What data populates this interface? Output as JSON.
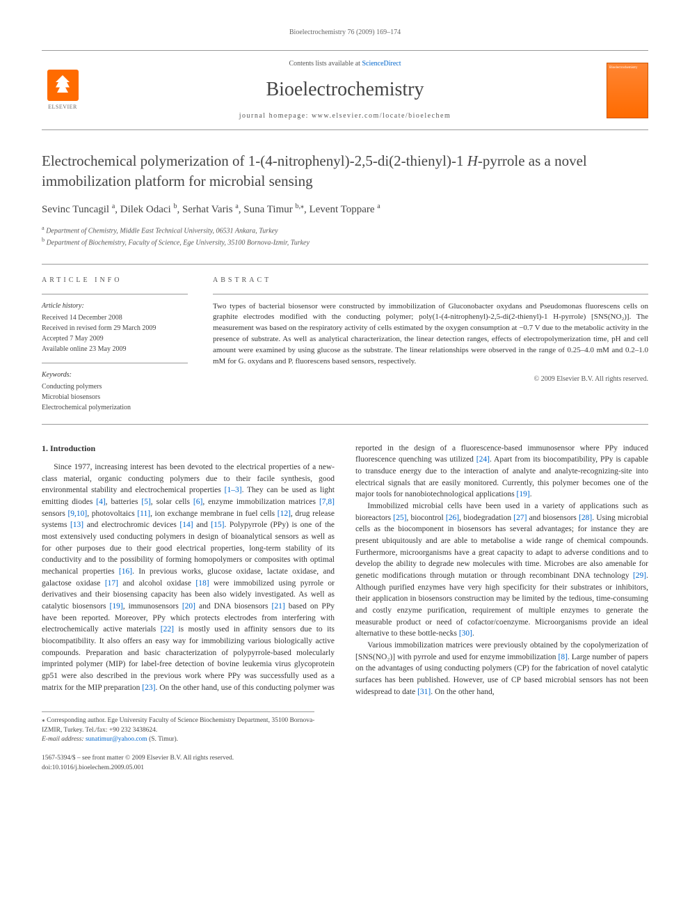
{
  "page_header": "Bioelectrochemistry 76 (2009) 169–174",
  "masthead": {
    "contents_prefix": "Contents lists available at ",
    "sciencedirect": "ScienceDirect",
    "journal_name": "Bioelectrochemistry",
    "homepage_prefix": "journal homepage: ",
    "homepage_url": "www.elsevier.com/locate/bioelechem",
    "elsevier_label": "ELSEVIER",
    "cover_label": "Bioelectrochemistry"
  },
  "title": {
    "line1": "Electrochemical polymerization of 1-(4-nitrophenyl)-2,5-di(2-thienyl)-1 ",
    "italic_part": "H",
    "line1_cont": "-pyrrole",
    "line2": "as a novel immobilization platform for microbial sensing"
  },
  "authors": [
    {
      "name": "Sevinc Tuncagil",
      "sup": "a"
    },
    {
      "name": "Dilek Odaci",
      "sup": "b"
    },
    {
      "name": "Serhat Varis",
      "sup": "a"
    },
    {
      "name": "Suna Timur",
      "sup": "b,",
      "star": "⁎"
    },
    {
      "name": "Levent Toppare",
      "sup": "a"
    }
  ],
  "affiliations": {
    "a": "Department of Chemistry, Middle East Technical University, 06531 Ankara, Turkey",
    "b": "Department of Biochemistry, Faculty of Science, Ege University, 35100 Bornova-Izmir, Turkey"
  },
  "article_info": {
    "heading": "ARTICLE INFO",
    "history_label": "Article history:",
    "history": [
      "Received 14 December 2008",
      "Received in revised form 29 March 2009",
      "Accepted 7 May 2009",
      "Available online 23 May 2009"
    ],
    "keywords_label": "Keywords:",
    "keywords": [
      "Conducting polymers",
      "Microbial biosensors",
      "Electrochemical polymerization"
    ]
  },
  "abstract": {
    "heading": "ABSTRACT",
    "text": "Two types of bacterial biosensor were constructed by immobilization of Gluconobacter oxydans and Pseudomonas fluorescens cells on graphite electrodes modified with the conducting polymer; poly(1-(4-nitrophenyl)-2,5-di(2-thienyl)-1 H-pyrrole) [SNS(NO₂)]. The measurement was based on the respiratory activity of cells estimated by the oxygen consumption at −0.7 V due to the metabolic activity in the presence of substrate. As well as analytical characterization, the linear detection ranges, effects of electropolymerization time, pH and cell amount were examined by using glucose as the substrate. The linear relationships were observed in the range of 0.25–4.0 mM and 0.2–1.0 mM for G. oxydans and P. fluorescens based sensors, respectively.",
    "copyright": "© 2009 Elsevier B.V. All rights reserved."
  },
  "section_heading": "1. Introduction",
  "body": {
    "p1a": "Since 1977, increasing interest has been devoted to the electrical properties of a new-class material, organic conducting polymers due to their facile synthesis, good environmental stability and electrochemical properties ",
    "c1": "[1–3]",
    "p1b": ". They can be used as light emitting diodes ",
    "c2": "[4]",
    "p1c": ", batteries ",
    "c3": "[5]",
    "p1d": ", solar cells ",
    "c4": "[6]",
    "p1e": ", enzyme immobilization matrices ",
    "c5": "[7,8]",
    "p1f": " sensors ",
    "c6": "[9,10]",
    "p1g": ", photovoltaics ",
    "c7": "[11]",
    "p1h": ", ion exchange membrane in fuel cells ",
    "c8": "[12]",
    "p1i": ", drug release systems ",
    "c9": "[13]",
    "p1j": " and electrochromic devices ",
    "c10": "[14]",
    "p1k": " and ",
    "c11": "[15]",
    "p1l": ". Polypyrrole (PPy) is one of the most extensively used conducting polymers in design of bioanalytical sensors as well as for other purposes due to their good electrical properties, long-term stability of its conductivity and to the possibility of forming homopolymers or composites with optimal mechanical properties ",
    "c12": "[16]",
    "p1m": ". In previous works, glucose oxidase, lactate oxidase, and galactose oxidase ",
    "c13": "[17]",
    "p1n": " and alcohol oxidase ",
    "c14": "[18]",
    "p1o": " were immobilized using pyrrole or derivatives and their biosensing capacity has been also widely investigated. As well as catalytic biosensors ",
    "c15": "[19]",
    "p1p": ", immunosensors ",
    "c16": "[20]",
    "p1q": " and DNA biosensors ",
    "c17": "[21]",
    "p1r": " based on PPy have been reported. Moreover, PPy which protects electrodes from interfering with electrochemically active materials ",
    "c18": "[22]",
    "p1s": " is mostly used in affinity sensors due to its biocompatibility. It also offers an easy way for immobilizing various biologically active compounds. Preparation and basic characterization of polypyrrole-based molecularly imprinted polymer (MIP) for label-free detection of bovine leukemia virus glycoprotein gp51 were also described in the previous work where PPy was successfully used as a ",
    "p2a": "matrix for the MIP preparation ",
    "c19": "[23]",
    "p2b": ". On the other hand, use of this conducting polymer was reported in the design of a fluorescence-based immunosensor where PPy induced fluorescence quenching was utilized ",
    "c20": "[24]",
    "p2c": ". Apart from its biocompatibility, PPy is capable to transduce energy due to the interaction of analyte and analyte-recognizing-site into electrical signals that are easily monitored. Currently, this polymer becomes one of the major tools for nanobiotechnological applications ",
    "c21": "[19]",
    "p2d": ".",
    "p3a": "Immobilized microbial cells have been used in a variety of applications such as bioreactors ",
    "c22": "[25]",
    "p3b": ", biocontrol ",
    "c23": "[26]",
    "p3c": ", biodegradation ",
    "c24": "[27]",
    "p3d": " and biosensors ",
    "c25": "[28]",
    "p3e": ". Using microbial cells as the biocomponent in biosensors has several advantages; for instance they are present ubiquitously and are able to metabolise a wide range of chemical compounds. Furthermore, microorganisms have a great capacity to adapt to adverse conditions and to develop the ability to degrade new molecules with time. Microbes are also amenable for genetic modifications through mutation or through recombinant DNA technology ",
    "c26": "[29]",
    "p3f": ". Although purified enzymes have very high specificity for their substrates or inhibitors, their application in biosensors construction may be limited by the tedious, time-consuming and costly enzyme purification, requirement of multiple enzymes to generate the measurable product or need of cofactor/coenzyme. Microorganisms provide an ideal alternative to these bottle-necks ",
    "c27": "[30]",
    "p3g": ".",
    "p4a": "Various immobilization matrices were previously obtained by the copolymerization of [SNS(NO₂)] with pyrrole and used for enzyme immobilization ",
    "c28": "[8]",
    "p4b": ". Large number of papers on the advantages of using conducting polymers (CP) for the fabrication of novel catalytic surfaces has been published. However, use of CP based microbial sensors has not been widespread to date ",
    "c29": "[31]",
    "p4c": ". On the other hand,"
  },
  "footnotes": {
    "corr_label": "⁎ Corresponding author. Ege University Faculty of Science Biochemistry Department, 35100 Bornova-IZMIR, Turkey. Tel./fax: +90 232 3438624.",
    "email_label": "E-mail address:",
    "email": "sunatimur@yahoo.com",
    "email_suffix": "(S. Timur)."
  },
  "bottom": {
    "left1": "1567-5394/$ – see front matter © 2009 Elsevier B.V. All rights reserved.",
    "left2": "doi:10.1016/j.bioelechem.2009.05.001"
  }
}
